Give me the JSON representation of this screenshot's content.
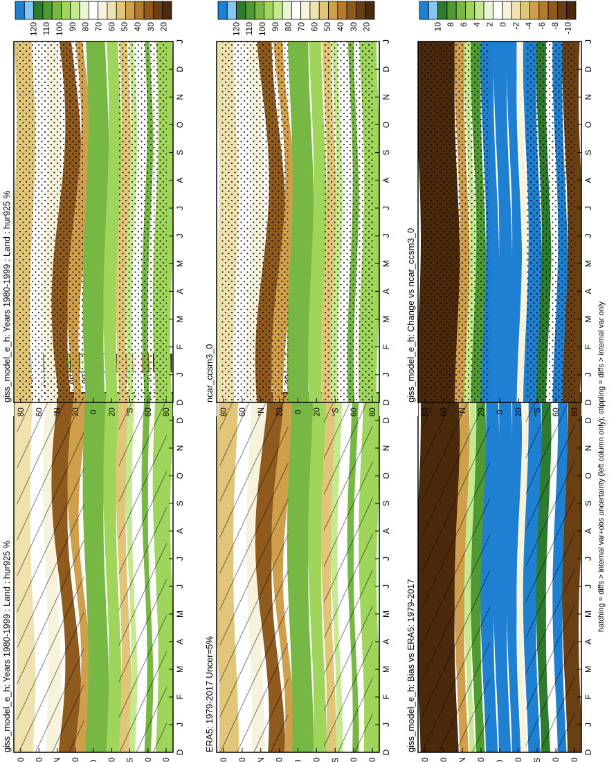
{
  "palette": {
    "levels": [
      "120",
      "110",
      "100",
      "90",
      "80",
      "70",
      "60",
      "50",
      "40",
      "30",
      "20"
    ],
    "diff_levels": [
      "10",
      "8",
      "6",
      "4",
      "2",
      "0",
      "-2",
      "-4",
      "-6",
      "-8",
      "-10"
    ],
    "colors": [
      "#1f7fd1",
      "#86c6ef",
      "#2e7a2e",
      "#4f9a33",
      "#76b843",
      "#9ed55a",
      "#c5e98f",
      "#e8f6d2",
      "#ffffff",
      "#f7f2dc",
      "#efe2ae",
      "#e1c67a",
      "#cf9f4c",
      "#b67a2e",
      "#8f5a1d",
      "#6a3f14",
      "#4a2a0b"
    ]
  },
  "axes": {
    "months": [
      "D",
      "J",
      "F",
      "M",
      "A",
      "M",
      "J",
      "J",
      "A",
      "S",
      "O",
      "N",
      "D",
      "J"
    ],
    "lat_labels": [
      "80",
      "60",
      "°N",
      "20",
      "0",
      "20",
      "°S",
      "60",
      "80"
    ]
  },
  "panels": [
    {
      "id": "model",
      "title": "giss_model_e_h: Years 1980-1999 : Land : hur925 %",
      "kind": "abs",
      "overlay": "hatch"
    },
    {
      "id": "obs",
      "title": "ERA5: 1979-2017 Uncer=5%",
      "kind": "abs",
      "overlay": "hatch"
    },
    {
      "id": "bias",
      "title": "giss_model_e_h: Bias vs ERA5: 1979-2017",
      "kind": "diff",
      "overlay": "hatch"
    },
    {
      "id": "ref",
      "title": "giss_model_e_h: Years 1980-1999 : Land : hur925 %",
      "kind": "abs",
      "overlay": "stipple"
    },
    {
      "id": "ref2",
      "title": "ncar_ccsm3_0",
      "kind": "abs",
      "overlay": "stipple"
    },
    {
      "id": "change",
      "title": "giss_model_e_h: Change vs ncar_ccsm3_0",
      "kind": "diff",
      "overlay": "stipple"
    }
  ],
  "footnote": "hatching = diffs > internal var+obs uncertainty (left column only); stippling = diffs > internal var only",
  "chart_data": [
    {
      "type": "heatmap",
      "title": "giss_model_e_h: Years 1980-1999 : Land : hur925 %",
      "x": [
        "D",
        "J",
        "F",
        "M",
        "A",
        "M",
        "J",
        "J",
        "A",
        "S",
        "O",
        "N",
        "D",
        "J"
      ],
      "y": [
        80,
        60,
        40,
        20,
        0,
        -20,
        -40,
        -60,
        -80
      ],
      "zlevels": [
        20,
        30,
        40,
        50,
        60,
        70,
        80,
        90,
        100,
        110,
        120
      ]
    },
    {
      "type": "heatmap",
      "title": "ERA5: 1979-2017 Uncer=5%",
      "x": [
        "D",
        "J",
        "F",
        "M",
        "A",
        "M",
        "J",
        "J",
        "A",
        "S",
        "O",
        "N",
        "D",
        "J"
      ],
      "y": [
        80,
        60,
        40,
        20,
        0,
        -20,
        -40,
        -60,
        -80
      ],
      "zlevels": [
        20,
        30,
        40,
        50,
        60,
        70,
        80,
        90,
        100,
        110,
        120
      ]
    },
    {
      "type": "heatmap",
      "title": "giss_model_e_h: Bias vs ERA5: 1979-2017",
      "x": [
        "D",
        "J",
        "F",
        "M",
        "A",
        "M",
        "J",
        "J",
        "A",
        "S",
        "O",
        "N",
        "D",
        "J"
      ],
      "y": [
        80,
        60,
        40,
        20,
        0,
        -20,
        -40,
        -60,
        -80
      ],
      "zlevels": [
        -10,
        -8,
        -6,
        -4,
        -2,
        0,
        2,
        4,
        6,
        8,
        10
      ]
    },
    {
      "type": "heatmap",
      "title": "giss_model_e_h: Years 1980-1999 : Land : hur925 %",
      "x": [
        "D",
        "J",
        "F",
        "M",
        "A",
        "M",
        "J",
        "J",
        "A",
        "S",
        "O",
        "N",
        "D",
        "J"
      ],
      "y": [
        80,
        60,
        40,
        20,
        0,
        -20,
        -40,
        -60,
        -80
      ],
      "zlevels": [
        20,
        30,
        40,
        50,
        60,
        70,
        80,
        90,
        100,
        110,
        120
      ]
    },
    {
      "type": "heatmap",
      "title": "ncar_ccsm3_0",
      "x": [
        "D",
        "J",
        "F",
        "M",
        "A",
        "M",
        "J",
        "J",
        "A",
        "S",
        "O",
        "N",
        "D",
        "J"
      ],
      "y": [
        80,
        60,
        40,
        20,
        0,
        -20,
        -40,
        -60,
        -80
      ],
      "zlevels": [
        20,
        30,
        40,
        50,
        60,
        70,
        80,
        90,
        100,
        110,
        120
      ]
    },
    {
      "type": "heatmap",
      "title": "giss_model_e_h: Change vs ncar_ccsm3_0",
      "x": [
        "D",
        "J",
        "F",
        "M",
        "A",
        "M",
        "J",
        "J",
        "A",
        "S",
        "O",
        "N",
        "D",
        "J"
      ],
      "y": [
        80,
        60,
        40,
        20,
        0,
        -20,
        -40,
        -60,
        -80
      ],
      "zlevels": [
        -10,
        -8,
        -6,
        -4,
        -2,
        0,
        2,
        4,
        6,
        8,
        10
      ]
    }
  ]
}
